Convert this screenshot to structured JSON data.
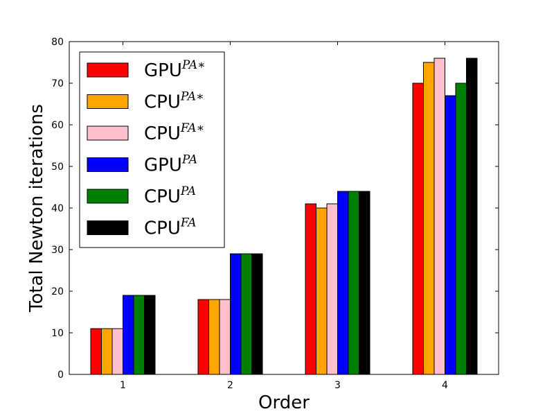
{
  "chart_data": {
    "type": "bar",
    "title": "",
    "xlabel": "Order",
    "ylabel": "Total Newton iterations",
    "categories": [
      "1",
      "2",
      "3",
      "4"
    ],
    "ylim": [
      0,
      80
    ],
    "yticks": [
      "0",
      "10",
      "20",
      "30",
      "40",
      "50",
      "60",
      "70",
      "80"
    ],
    "legend_position": "top-left",
    "grid": false,
    "series": [
      {
        "name": "GPU",
        "sup": "PA∗",
        "color": "#ff0000",
        "values": [
          11,
          18,
          41,
          70
        ]
      },
      {
        "name": "CPU",
        "sup": "PA∗",
        "color": "#ffa500",
        "values": [
          11,
          18,
          40,
          75
        ]
      },
      {
        "name": "CPU",
        "sup": "FA∗",
        "color": "#ffc0cb",
        "values": [
          11,
          18,
          41,
          76
        ]
      },
      {
        "name": "GPU",
        "sup": "PA",
        "color": "#0000ff",
        "values": [
          19,
          29,
          44,
          67
        ]
      },
      {
        "name": "CPU",
        "sup": "PA",
        "color": "#008000",
        "values": [
          19,
          29,
          44,
          70
        ]
      },
      {
        "name": "CPU",
        "sup": "FA",
        "color": "#000000",
        "values": [
          19,
          29,
          44,
          76
        ]
      }
    ]
  }
}
